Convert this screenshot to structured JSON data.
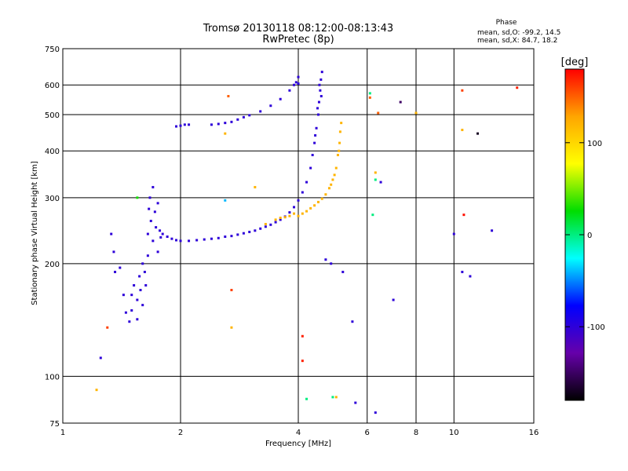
{
  "chart_data": {
    "type": "scatter",
    "title": "Tromsø 20130118 08:12:00-08:13:43",
    "subtitle": "RwPretec (8p)",
    "xlabel": "Frequency [MHz]",
    "ylabel": "Stationary phase Virtual Height [km]",
    "x_scale": "log",
    "y_scale": "log",
    "xlim": [
      1,
      16
    ],
    "ylim": [
      75,
      750
    ],
    "x_ticks": [
      1,
      2,
      4,
      6,
      8,
      10,
      16
    ],
    "y_ticks": [
      75,
      100,
      200,
      300,
      400,
      500,
      600,
      750
    ],
    "grid_x": [
      2,
      4,
      6,
      8,
      10
    ],
    "grid_y": [
      100,
      200,
      300,
      400,
      500,
      600
    ],
    "stats": {
      "heading": "Phase",
      "line1": "mean, sd,O: -99.2, 14.5",
      "line2": "mean, sd,X:  84.7, 18.2"
    },
    "colorbar": {
      "label": "[deg]",
      "range": [
        -180,
        180
      ],
      "ticks": [
        100,
        0,
        -100
      ],
      "tick_labels": [
        "100",
        "0",
        "-100"
      ],
      "colors": [
        "#ff0000",
        "#ffa500",
        "#ffff00",
        "#00dd00",
        "#00ffff",
        "#0000ff",
        "#6600aa",
        "#000000"
      ]
    },
    "series_o_points": [
      [
        1.25,
        112,
        -100
      ],
      [
        1.33,
        240,
        -100
      ],
      [
        1.35,
        215,
        -100
      ],
      [
        1.36,
        190,
        -100
      ],
      [
        1.4,
        195,
        -100
      ],
      [
        1.43,
        165,
        -100
      ],
      [
        1.45,
        148,
        -100
      ],
      [
        1.48,
        140,
        -100
      ],
      [
        1.5,
        150,
        -100
      ],
      [
        1.5,
        165,
        -100
      ],
      [
        1.52,
        175,
        -100
      ],
      [
        1.55,
        142,
        -100
      ],
      [
        1.55,
        160,
        -100
      ],
      [
        1.57,
        185,
        -100
      ],
      [
        1.58,
        170,
        -100
      ],
      [
        1.6,
        155,
        -100
      ],
      [
        1.6,
        200,
        -100
      ],
      [
        1.62,
        190,
        -100
      ],
      [
        1.63,
        175,
        -100
      ],
      [
        1.65,
        210,
        -100
      ],
      [
        1.65,
        240,
        -100
      ],
      [
        1.66,
        280,
        -100
      ],
      [
        1.67,
        300,
        -100
      ],
      [
        1.68,
        260,
        -100
      ],
      [
        1.7,
        230,
        -100
      ],
      [
        1.7,
        320,
        -100
      ],
      [
        1.72,
        275,
        -100
      ],
      [
        1.73,
        250,
        -100
      ],
      [
        1.75,
        215,
        -100
      ],
      [
        1.75,
        290,
        -100
      ],
      [
        1.77,
        245,
        -100
      ],
      [
        1.78,
        235,
        -100
      ],
      [
        1.8,
        240,
        -100
      ],
      [
        1.85,
        236,
        -100
      ],
      [
        1.9,
        233,
        -100
      ],
      [
        1.95,
        231,
        -100
      ],
      [
        2.0,
        230,
        -100
      ],
      [
        2.1,
        230,
        -100
      ],
      [
        2.2,
        231,
        -100
      ],
      [
        2.3,
        232,
        -100
      ],
      [
        2.4,
        233,
        -100
      ],
      [
        2.5,
        234,
        -100
      ],
      [
        2.6,
        236,
        -100
      ],
      [
        2.7,
        237,
        -100
      ],
      [
        2.8,
        239,
        -100
      ],
      [
        2.9,
        241,
        -100
      ],
      [
        3.0,
        243,
        -100
      ],
      [
        3.1,
        245,
        -100
      ],
      [
        3.2,
        248,
        -100
      ],
      [
        3.3,
        251,
        -100
      ],
      [
        3.4,
        254,
        -100
      ],
      [
        3.5,
        258,
        -100
      ],
      [
        3.6,
        262,
        -100
      ],
      [
        3.7,
        267,
        -100
      ],
      [
        3.8,
        274,
        -100
      ],
      [
        3.9,
        283,
        -100
      ],
      [
        4.0,
        295,
        -100
      ],
      [
        4.1,
        310,
        -100
      ],
      [
        4.2,
        330,
        -100
      ],
      [
        4.3,
        360,
        -100
      ],
      [
        4.35,
        390,
        -100
      ],
      [
        4.4,
        420,
        -100
      ],
      [
        4.45,
        460,
        -100
      ],
      [
        4.5,
        500,
        -100
      ],
      [
        4.52,
        540,
        -100
      ],
      [
        4.55,
        580,
        -100
      ],
      [
        4.57,
        620,
        -100
      ],
      [
        4.6,
        650,
        -100
      ],
      [
        4.42,
        440,
        -100
      ],
      [
        4.48,
        520,
        -100
      ],
      [
        4.53,
        600,
        -100
      ],
      [
        4.58,
        560,
        -100
      ],
      [
        1.95,
        465,
        -100
      ],
      [
        2.0,
        467,
        -100
      ],
      [
        2.05,
        470,
        -100
      ],
      [
        2.1,
        470,
        -100
      ],
      [
        2.4,
        470,
        -100
      ],
      [
        2.5,
        472,
        -100
      ],
      [
        2.6,
        475,
        -100
      ],
      [
        2.7,
        478,
        -100
      ],
      [
        2.8,
        485,
        -100
      ],
      [
        2.9,
        492,
        -100
      ],
      [
        3.0,
        498,
        -100
      ],
      [
        3.2,
        510,
        -100
      ],
      [
        3.4,
        528,
        -100
      ],
      [
        3.6,
        550,
        -100
      ],
      [
        3.8,
        580,
        -100
      ],
      [
        3.9,
        600,
        -100
      ],
      [
        4.0,
        630,
        -100
      ],
      [
        4.0,
        605,
        -100
      ],
      [
        3.95,
        610,
        -100
      ],
      [
        4.7,
        205,
        -100
      ],
      [
        4.85,
        200,
        -100
      ],
      [
        5.2,
        190,
        -100
      ],
      [
        5.5,
        140,
        -100
      ],
      [
        5.6,
        85,
        -100
      ],
      [
        6.3,
        80,
        -100
      ],
      [
        6.5,
        330,
        -100
      ],
      [
        7.0,
        160,
        -100
      ],
      [
        10.0,
        240,
        -100
      ],
      [
        10.5,
        190,
        -100
      ],
      [
        11.0,
        185,
        -100
      ],
      [
        12.5,
        245,
        -100
      ]
    ],
    "series_x_points": [
      [
        3.8,
        268,
        120
      ],
      [
        3.9,
        272,
        120
      ],
      [
        4.0,
        268,
        120
      ],
      [
        4.1,
        272,
        120
      ],
      [
        4.2,
        276,
        120
      ],
      [
        4.3,
        281,
        120
      ],
      [
        4.4,
        286,
        120
      ],
      [
        4.5,
        292,
        120
      ],
      [
        4.6,
        298,
        120
      ],
      [
        4.7,
        306,
        120
      ],
      [
        4.8,
        318,
        120
      ],
      [
        4.9,
        335,
        120
      ],
      [
        5.0,
        360,
        120
      ],
      [
        5.05,
        390,
        120
      ],
      [
        5.1,
        420,
        120
      ],
      [
        5.12,
        450,
        120
      ],
      [
        5.15,
        475,
        120
      ],
      [
        5.08,
        400,
        120
      ],
      [
        4.95,
        345,
        120
      ],
      [
        4.85,
        325,
        120
      ],
      [
        3.6,
        265,
        120
      ],
      [
        3.7,
        266,
        120
      ],
      [
        3.3,
        255,
        120
      ],
      [
        3.5,
        262,
        120
      ],
      [
        1.22,
        92,
        120
      ],
      [
        2.7,
        135,
        120
      ],
      [
        5.0,
        88,
        120
      ],
      [
        6.3,
        350,
        120
      ],
      [
        8.0,
        505,
        120
      ],
      [
        10.5,
        455,
        120
      ],
      [
        2.6,
        445,
        120
      ]
    ],
    "series_other_points": [
      [
        1.3,
        135,
        160
      ],
      [
        1.55,
        300,
        30
      ],
      [
        2.65,
        560,
        150
      ],
      [
        2.7,
        170,
        160
      ],
      [
        3.1,
        320,
        120
      ],
      [
        4.1,
        128,
        170
      ],
      [
        4.1,
        110,
        170
      ],
      [
        4.2,
        87,
        0
      ],
      [
        4.9,
        88,
        0
      ],
      [
        6.1,
        555,
        150
      ],
      [
        6.2,
        270,
        0
      ],
      [
        6.3,
        335,
        0
      ],
      [
        6.4,
        505,
        150
      ],
      [
        7.3,
        540,
        -150
      ],
      [
        10.5,
        580,
        160
      ],
      [
        10.6,
        270,
        175
      ],
      [
        11.5,
        445,
        -170
      ],
      [
        14.5,
        590,
        170
      ],
      [
        2.6,
        295,
        -40
      ],
      [
        6.1,
        570,
        0
      ]
    ]
  }
}
